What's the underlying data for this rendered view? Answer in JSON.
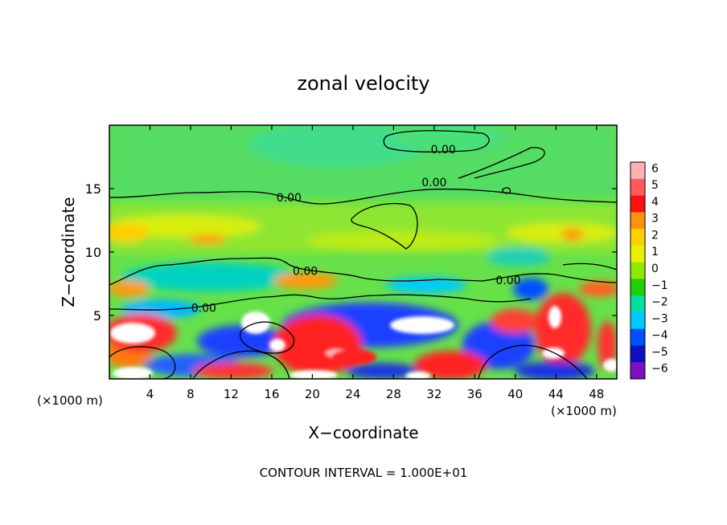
{
  "chart_data": {
    "type": "heatmap",
    "title": "zonal velocity",
    "xlabel": "X−coordinate",
    "ylabel": "Z−coordinate",
    "x_unit_left": "(×1000 m)",
    "x_unit_right": "(×1000 m)",
    "xlim": [
      0,
      50
    ],
    "ylim": [
      0,
      20
    ],
    "x_ticks": [
      4,
      8,
      12,
      16,
      20,
      24,
      28,
      32,
      36,
      40,
      44,
      48
    ],
    "x_tick_labels": [
      "4",
      "8",
      "12",
      "16",
      "20",
      "24",
      "28",
      "32",
      "36",
      "40",
      "44",
      "48"
    ],
    "y_ticks": [
      5,
      10,
      15
    ],
    "y_tick_labels": [
      "5",
      "10",
      "15"
    ],
    "colorbar": {
      "levels": [
        6,
        5,
        4,
        3,
        2,
        1,
        0,
        -1,
        -2,
        -3,
        -4,
        -5,
        -6
      ],
      "labels": [
        "6",
        "5",
        "4",
        "3",
        "2",
        "1",
        "0",
        "−1",
        "−2",
        "−3",
        "−4",
        "−5",
        "−6"
      ],
      "colors": [
        "#ffb0b0",
        "#ff5a5a",
        "#ff1010",
        "#ff9010",
        "#ffd000",
        "#e8f000",
        "#90e800",
        "#20d000",
        "#00e0a0",
        "#00c8ff",
        "#0050ff",
        "#1010c0",
        "#7a10c0"
      ]
    },
    "contour_label": "0.00",
    "contour_labels": [
      {
        "x": 32.9,
        "z": 18.1,
        "text": "0.00"
      },
      {
        "x": 32.0,
        "z": 15.5,
        "text": "0.00"
      },
      {
        "x": 17.7,
        "z": 14.3,
        "text": "0.00"
      },
      {
        "x": 19.3,
        "z": 8.5,
        "text": "0.00"
      },
      {
        "x": 39.3,
        "z": 7.8,
        "text": "0.00"
      },
      {
        "x": 9.3,
        "z": 5.6,
        "text": "0.00"
      }
    ],
    "footer": "CONTOUR INTERVAL = 1.000E+01"
  }
}
